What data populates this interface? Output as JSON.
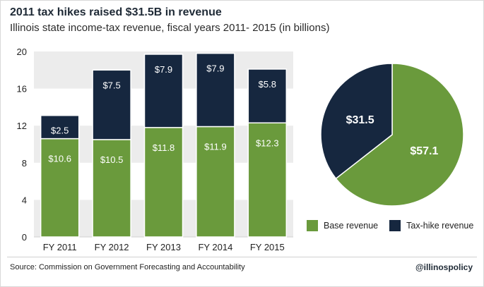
{
  "chart_data": [
    {
      "type": "bar",
      "title": "2011 tax hikes raised $31.5B in revenue",
      "subtitle": "Illinois state income-tax revenue, fiscal years 2011- 2015 (in billions)",
      "stacked": true,
      "categories": [
        "FY 2011",
        "FY 2012",
        "FY 2013",
        "FY 2014",
        "FY 2015"
      ],
      "series": [
        {
          "name": "Base revenue",
          "values": [
            10.6,
            10.5,
            11.8,
            11.9,
            12.3
          ],
          "labels": [
            "$10.6",
            "$10.5",
            "$11.8",
            "$11.9",
            "$12.3"
          ],
          "color": "#6a9a3c"
        },
        {
          "name": "Tax-hike revenue",
          "values": [
            2.5,
            7.5,
            7.9,
            7.9,
            5.8
          ],
          "labels": [
            "$2.5",
            "$7.5",
            "$7.9",
            "$7.9",
            "$5.8"
          ],
          "color": "#16273f"
        }
      ],
      "ylim": [
        0,
        20
      ],
      "yticks": [
        "0",
        "4",
        "8",
        "12",
        "16",
        "20"
      ],
      "ytick_values": [
        0,
        4,
        8,
        12,
        16,
        20
      ],
      "grid": "horizontal bands"
    },
    {
      "type": "pie",
      "slices": [
        {
          "name": "Base revenue",
          "value": 57.1,
          "label": "$57.1",
          "color": "#6a9a3c"
        },
        {
          "name": "Tax-hike revenue",
          "value": 31.5,
          "label": "$31.5",
          "color": "#16273f"
        }
      ],
      "legend": "bottom"
    }
  ],
  "footer": {
    "source": "Source: Commission on Government Forecasting and Accountability",
    "handle": "@illinospolicy"
  }
}
